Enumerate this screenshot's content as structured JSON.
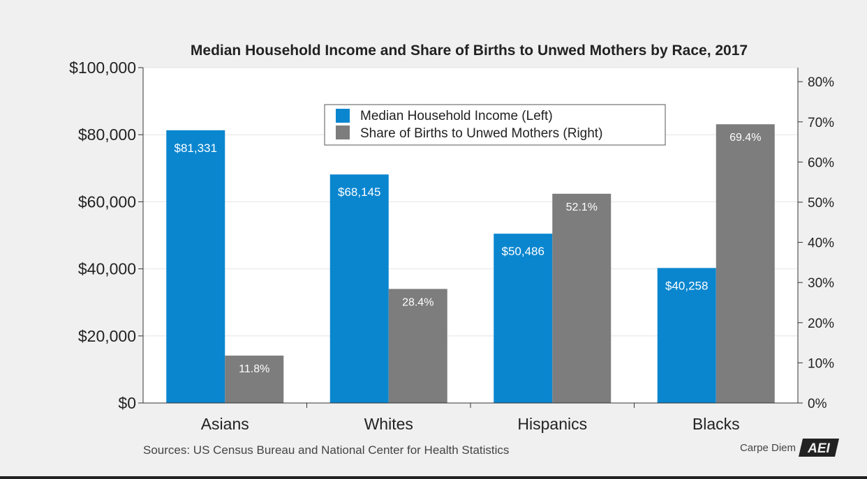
{
  "chart_data": {
    "type": "bar",
    "title": "Median Household Income and Share of Births to Unwed Mothers by Race, 2017",
    "categories": [
      "Asians",
      "Whites",
      "Hispanics",
      "Blacks"
    ],
    "series": [
      {
        "name": "Median Household Income (Left)",
        "axis": "left",
        "color": "#0a86cf",
        "values": [
          81331,
          68145,
          50486,
          40258
        ],
        "labels": [
          "$81,331",
          "$68,145",
          "$50,486",
          "$40,258"
        ]
      },
      {
        "name": "Share of Births to Unwed Mothers (Right)",
        "axis": "right",
        "color": "#7d7d7d",
        "values": [
          11.8,
          28.4,
          52.1,
          69.4
        ],
        "labels": [
          "11.8%",
          "28.4%",
          "52.1%",
          "69.4%"
        ]
      }
    ],
    "y_left": {
      "range": [
        0,
        100000
      ],
      "ticks": [
        0,
        20000,
        40000,
        60000,
        80000,
        100000
      ],
      "tick_labels": [
        "$0",
        "$20,000",
        "$40,000",
        "$60,000",
        "$80,000",
        "$100,000"
      ]
    },
    "y_right": {
      "range": [
        0,
        83.5
      ],
      "ticks": [
        0,
        10,
        20,
        30,
        40,
        50,
        60,
        70,
        80
      ],
      "tick_labels": [
        "0%",
        "10%",
        "20%",
        "30%",
        "40%",
        "50%",
        "60%",
        "70%",
        "80%"
      ]
    },
    "legend_position": "top-center",
    "grid": true
  },
  "footer": {
    "source": "Sources: US Census Bureau and National Center for Health Statistics",
    "brand": "Carpe Diem",
    "logo": "AEI"
  },
  "colors": {
    "background": "#f0f0f0",
    "plot_background": "#ffffff",
    "gridline": "#e4e4e4",
    "axis": "#333333"
  }
}
